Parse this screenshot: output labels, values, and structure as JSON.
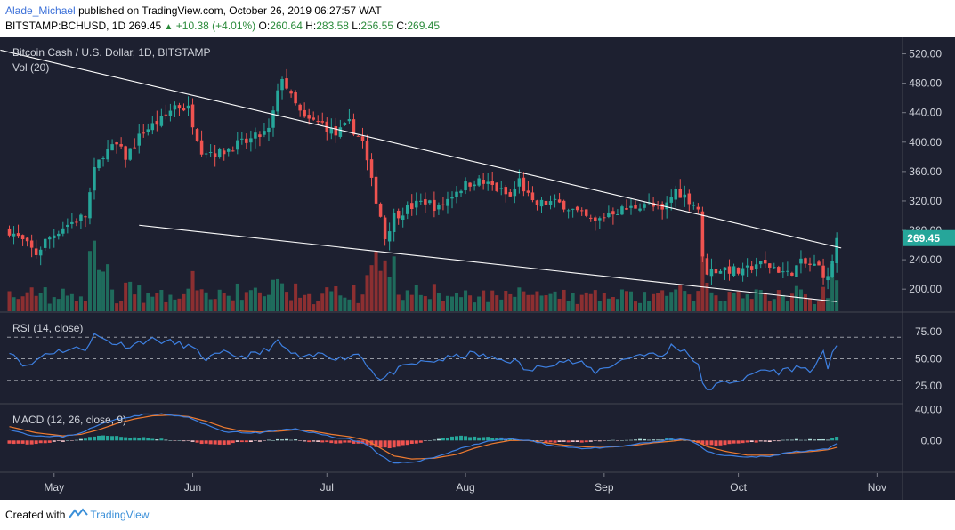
{
  "header": {
    "author": "Alade_Michael",
    "published_text": "published on TradingView.com, October 26, 2019 06:27:57 WAT",
    "symbol_line": "BITSTAMP:BCHUSD, 1D",
    "price": "269.45",
    "change": "+10.38 (+4.01%)",
    "o_label": "O:",
    "o_val": "260.64",
    "h_label": "H:",
    "h_val": "283.58",
    "l_label": "L:",
    "l_val": "256.55",
    "c_label": "C:",
    "c_val": "269.45"
  },
  "footer": {
    "created_with": "Created with",
    "brand": "TradingView"
  },
  "colors": {
    "background": "#1d2030",
    "up": "#26a69a",
    "down": "#ef5350",
    "vol_up": "#1f6b5c",
    "vol_down": "#8c2f31",
    "axis_text": "#d1d4dc",
    "rsi_line": "#3d7fe0",
    "macd_line": "#3d7fe0",
    "signal_line": "#ef7b30",
    "trendline": "#ffffff",
    "price_tag": "#26a69a"
  },
  "chart_data": [
    {
      "type": "candlestick",
      "title": "Bitcoin Cash / U.S. Dollar, 1D, BITSTAMP",
      "subtitle": "Vol (20)",
      "ylim": [
        170,
        540
      ],
      "y_ticks": [
        520,
        480,
        440,
        400,
        360,
        320,
        280,
        240,
        200
      ],
      "y_tick_labels": [
        "520.00",
        "480.00",
        "440.00",
        "400.00",
        "360.00",
        "320.00",
        "280.00",
        "240.00",
        "200.00"
      ],
      "x_tick_labels": [
        "May",
        "Jun",
        "Jul",
        "Aug",
        "Sep",
        "Oct",
        "Nov"
      ],
      "x_tick_days": [
        10,
        41,
        71,
        102,
        133,
        163,
        194
      ],
      "last_price_label": "269.45",
      "close_waypoints": [
        [
          0,
          280
        ],
        [
          3,
          265
        ],
        [
          6,
          248
        ],
        [
          8,
          265
        ],
        [
          12,
          285
        ],
        [
          17,
          300
        ],
        [
          19,
          360
        ],
        [
          21,
          385
        ],
        [
          24,
          395
        ],
        [
          26,
          380
        ],
        [
          30,
          415
        ],
        [
          34,
          430
        ],
        [
          37,
          450
        ],
        [
          40,
          445
        ],
        [
          43,
          390
        ],
        [
          47,
          385
        ],
        [
          50,
          395
        ],
        [
          53,
          400
        ],
        [
          58,
          415
        ],
        [
          61,
          490
        ],
        [
          63,
          460
        ],
        [
          66,
          430
        ],
        [
          70,
          425
        ],
        [
          73,
          410
        ],
        [
          76,
          425
        ],
        [
          79,
          400
        ],
        [
          81,
          345
        ],
        [
          83,
          300
        ],
        [
          84,
          270
        ],
        [
          86,
          300
        ],
        [
          89,
          310
        ],
        [
          93,
          320
        ],
        [
          96,
          310
        ],
        [
          100,
          335
        ],
        [
          104,
          348
        ],
        [
          108,
          340
        ],
        [
          112,
          325
        ],
        [
          114,
          348
        ],
        [
          117,
          315
        ],
        [
          121,
          318
        ],
        [
          124,
          315
        ],
        [
          128,
          300
        ],
        [
          131,
          290
        ],
        [
          134,
          305
        ],
        [
          139,
          310
        ],
        [
          142,
          318
        ],
        [
          146,
          305
        ],
        [
          149,
          335
        ],
        [
          152,
          322
        ],
        [
          154,
          310
        ],
        [
          155,
          240
        ],
        [
          156,
          225
        ],
        [
          160,
          228
        ],
        [
          164,
          222
        ],
        [
          167,
          235
        ],
        [
          171,
          230
        ],
        [
          174,
          220
        ],
        [
          177,
          235
        ],
        [
          181,
          230
        ],
        [
          183,
          213
        ],
        [
          184,
          240
        ],
        [
          185,
          269.45
        ]
      ],
      "rsi": {
        "label": "RSI (14, close)",
        "ylim": [
          10,
          90
        ],
        "y_ticks": [
          75,
          50,
          25
        ],
        "y_tick_labels": [
          "75.00",
          "50.00",
          "25.00"
        ],
        "bands": [
          70,
          50,
          30
        ],
        "waypoints": [
          [
            0,
            58
          ],
          [
            4,
            42
          ],
          [
            8,
            55
          ],
          [
            12,
            58
          ],
          [
            17,
            60
          ],
          [
            19,
            72
          ],
          [
            23,
            65
          ],
          [
            27,
            62
          ],
          [
            31,
            68
          ],
          [
            35,
            66
          ],
          [
            40,
            62
          ],
          [
            44,
            50
          ],
          [
            48,
            55
          ],
          [
            52,
            52
          ],
          [
            56,
            55
          ],
          [
            60,
            65
          ],
          [
            63,
            55
          ],
          [
            66,
            50
          ],
          [
            70,
            55
          ],
          [
            74,
            50
          ],
          [
            78,
            55
          ],
          [
            81,
            40
          ],
          [
            83,
            30
          ],
          [
            86,
            38
          ],
          [
            90,
            45
          ],
          [
            95,
            48
          ],
          [
            100,
            52
          ],
          [
            104,
            55
          ],
          [
            108,
            50
          ],
          [
            113,
            48
          ],
          [
            116,
            38
          ],
          [
            120,
            45
          ],
          [
            124,
            48
          ],
          [
            128,
            45
          ],
          [
            131,
            38
          ],
          [
            135,
            45
          ],
          [
            139,
            52
          ],
          [
            142,
            55
          ],
          [
            146,
            52
          ],
          [
            148,
            62
          ],
          [
            151,
            58
          ],
          [
            154,
            45
          ],
          [
            155,
            25
          ],
          [
            156,
            22
          ],
          [
            160,
            28
          ],
          [
            165,
            32
          ],
          [
            168,
            40
          ],
          [
            172,
            38
          ],
          [
            176,
            42
          ],
          [
            180,
            40
          ],
          [
            182,
            55
          ],
          [
            183,
            42
          ],
          [
            184,
            58
          ],
          [
            185,
            63
          ]
        ]
      },
      "macd": {
        "label": "MACD (12, 26, close, 9)",
        "ylim": [
          -40,
          43
        ],
        "y_ticks": [
          40,
          0
        ],
        "y_tick_labels": [
          "40.00",
          "0.00"
        ],
        "macd_waypoints": [
          [
            0,
            15
          ],
          [
            4,
            8
          ],
          [
            8,
            5
          ],
          [
            12,
            5
          ],
          [
            16,
            10
          ],
          [
            20,
            20
          ],
          [
            24,
            28
          ],
          [
            28,
            32
          ],
          [
            32,
            35
          ],
          [
            36,
            33
          ],
          [
            40,
            30
          ],
          [
            44,
            20
          ],
          [
            48,
            12
          ],
          [
            52,
            10
          ],
          [
            56,
            10
          ],
          [
            60,
            13
          ],
          [
            64,
            15
          ],
          [
            68,
            10
          ],
          [
            72,
            5
          ],
          [
            76,
            2
          ],
          [
            80,
            -5
          ],
          [
            83,
            -20
          ],
          [
            86,
            -30
          ],
          [
            90,
            -28
          ],
          [
            95,
            -22
          ],
          [
            100,
            -12
          ],
          [
            104,
            -5
          ],
          [
            108,
            0
          ],
          [
            112,
            2
          ],
          [
            116,
            0
          ],
          [
            120,
            -5
          ],
          [
            124,
            -8
          ],
          [
            128,
            -10
          ],
          [
            132,
            -10
          ],
          [
            136,
            -8
          ],
          [
            140,
            -5
          ],
          [
            144,
            -2
          ],
          [
            148,
            1
          ],
          [
            151,
            2
          ],
          [
            154,
            -5
          ],
          [
            156,
            -15
          ],
          [
            160,
            -20
          ],
          [
            165,
            -22
          ],
          [
            170,
            -20
          ],
          [
            175,
            -15
          ],
          [
            180,
            -12
          ],
          [
            183,
            -11
          ],
          [
            185,
            -5
          ]
        ],
        "signal_waypoints": [
          [
            0,
            18
          ],
          [
            6,
            10
          ],
          [
            12,
            6
          ],
          [
            16,
            8
          ],
          [
            20,
            14
          ],
          [
            24,
            22
          ],
          [
            28,
            28
          ],
          [
            32,
            32
          ],
          [
            36,
            33
          ],
          [
            40,
            31
          ],
          [
            44,
            25
          ],
          [
            48,
            17
          ],
          [
            52,
            12
          ],
          [
            56,
            11
          ],
          [
            60,
            12
          ],
          [
            64,
            14
          ],
          [
            68,
            12
          ],
          [
            72,
            8
          ],
          [
            76,
            5
          ],
          [
            80,
            0
          ],
          [
            83,
            -10
          ],
          [
            86,
            -20
          ],
          [
            90,
            -24
          ],
          [
            95,
            -23
          ],
          [
            100,
            -18
          ],
          [
            104,
            -10
          ],
          [
            108,
            -4
          ],
          [
            112,
            0
          ],
          [
            116,
            0
          ],
          [
            120,
            -3
          ],
          [
            124,
            -6
          ],
          [
            128,
            -8
          ],
          [
            132,
            -9
          ],
          [
            136,
            -8
          ],
          [
            140,
            -6
          ],
          [
            144,
            -3
          ],
          [
            148,
            -1
          ],
          [
            151,
            1
          ],
          [
            154,
            -2
          ],
          [
            156,
            -8
          ],
          [
            160,
            -14
          ],
          [
            165,
            -19
          ],
          [
            170,
            -19
          ],
          [
            175,
            -16
          ],
          [
            180,
            -14
          ],
          [
            183,
            -12
          ],
          [
            185,
            -9
          ]
        ]
      },
      "annotations": [
        {
          "type": "trendline",
          "from": [
            -2,
            525
          ],
          "to": [
            186,
            256
          ]
        },
        {
          "type": "trendline",
          "from": [
            29,
            287
          ],
          "to": [
            185,
            183
          ]
        }
      ]
    }
  ]
}
